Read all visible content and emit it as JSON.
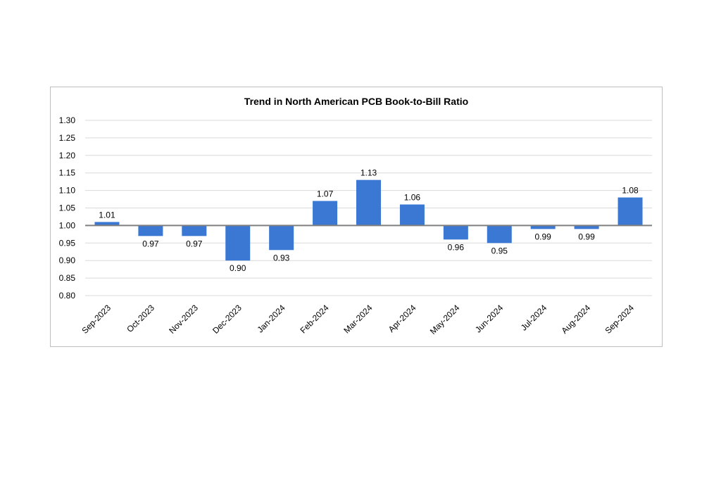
{
  "chart_data": {
    "type": "bar",
    "title": "Trend in North American PCB Book-to-Bill Ratio",
    "xlabel": "",
    "ylabel": "",
    "baseline": 1.0,
    "ylim": [
      0.8,
      1.3
    ],
    "yticks": [
      "0.80",
      "0.85",
      "0.90",
      "0.95",
      "1.00",
      "1.05",
      "1.10",
      "1.15",
      "1.20",
      "1.25",
      "1.30"
    ],
    "categories": [
      "Sep-2023",
      "Oct-2023",
      "Nov-2023",
      "Dec-2023",
      "Jan-2024",
      "Feb-2024",
      "Mar-2024",
      "Apr-2024",
      "May-2024",
      "Jun-2024",
      "Jul-2024",
      "Aug-2024",
      "Sep-2024"
    ],
    "values": [
      1.01,
      0.97,
      0.97,
      0.9,
      0.93,
      1.07,
      1.13,
      1.06,
      0.96,
      0.95,
      0.99,
      0.99,
      1.08
    ],
    "data_labels": [
      "1.01",
      "0.97",
      "0.97",
      "0.90",
      "0.93",
      "1.07",
      "1.13",
      "1.06",
      "0.96",
      "0.95",
      "0.99",
      "0.99",
      "1.08"
    ],
    "bar_color": "#3a78d4",
    "grid": true,
    "legend": "none"
  }
}
